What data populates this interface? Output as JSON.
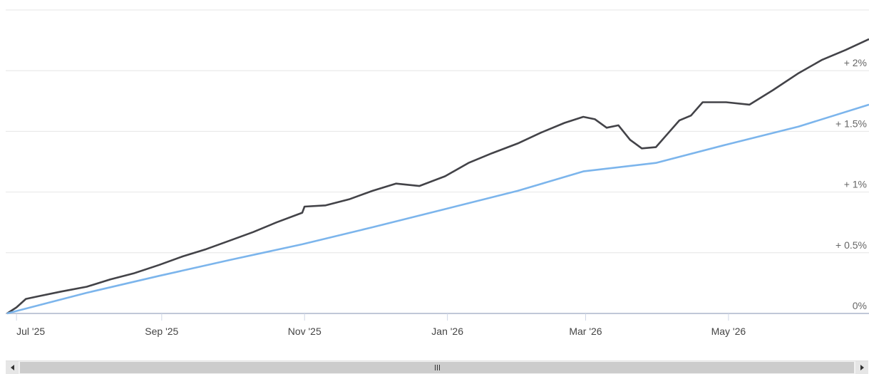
{
  "chart_data": {
    "type": "line",
    "x_start": "2025-06-27",
    "x_end": "2026-06-30",
    "x_tick_labels": [
      "Jul '25",
      "Sep '25",
      "Nov '25",
      "Jan '26",
      "Mar '26",
      "May '26"
    ],
    "y_tick_labels": [
      "0%",
      "+ 0.5%",
      "+ 1%",
      "+ 1.5%",
      "+ 2%"
    ],
    "ylim": [
      0,
      2.5
    ],
    "y_ticks": [
      0,
      0.5,
      1,
      1.5,
      2,
      2.5
    ],
    "y_axis_position": "right",
    "grid": true,
    "series": [
      {
        "color": "#434348",
        "points": [
          [
            "2025-06-27",
            0.0
          ],
          [
            "2025-07-01",
            0.05
          ],
          [
            "2025-07-05",
            0.12
          ],
          [
            "2025-07-10",
            0.14
          ],
          [
            "2025-07-20",
            0.18
          ],
          [
            "2025-07-31",
            0.22
          ],
          [
            "2025-08-10",
            0.28
          ],
          [
            "2025-08-20",
            0.33
          ],
          [
            "2025-08-31",
            0.4
          ],
          [
            "2025-09-10",
            0.47
          ],
          [
            "2025-09-20",
            0.53
          ],
          [
            "2025-09-30",
            0.6
          ],
          [
            "2025-10-10",
            0.67
          ],
          [
            "2025-10-20",
            0.75
          ],
          [
            "2025-10-31",
            0.83
          ],
          [
            "2025-11-01",
            0.88
          ],
          [
            "2025-11-10",
            0.89
          ],
          [
            "2025-11-20",
            0.94
          ],
          [
            "2025-11-30",
            1.01
          ],
          [
            "2025-12-10",
            1.07
          ],
          [
            "2025-12-20",
            1.05
          ],
          [
            "2025-12-31",
            1.13
          ],
          [
            "2026-01-10",
            1.24
          ],
          [
            "2026-01-20",
            1.32
          ],
          [
            "2026-01-31",
            1.4
          ],
          [
            "2026-02-10",
            1.49
          ],
          [
            "2026-02-20",
            1.57
          ],
          [
            "2026-02-28",
            1.62
          ],
          [
            "2026-03-05",
            1.6
          ],
          [
            "2026-03-10",
            1.53
          ],
          [
            "2026-03-15",
            1.55
          ],
          [
            "2026-03-20",
            1.43
          ],
          [
            "2026-03-25",
            1.36
          ],
          [
            "2026-03-31",
            1.37
          ],
          [
            "2026-04-05",
            1.48
          ],
          [
            "2026-04-10",
            1.59
          ],
          [
            "2026-04-15",
            1.63
          ],
          [
            "2026-04-20",
            1.74
          ],
          [
            "2026-04-30",
            1.74
          ],
          [
            "2026-05-10",
            1.72
          ],
          [
            "2026-05-20",
            1.84
          ],
          [
            "2026-05-31",
            1.98
          ],
          [
            "2026-06-10",
            2.09
          ],
          [
            "2026-06-20",
            2.17
          ],
          [
            "2026-06-30",
            2.26
          ]
        ]
      },
      {
        "color": "#7cb5ec",
        "points": [
          [
            "2025-06-27",
            0.0
          ],
          [
            "2025-07-31",
            0.17
          ],
          [
            "2025-08-31",
            0.31
          ],
          [
            "2025-09-30",
            0.44
          ],
          [
            "2025-10-31",
            0.57
          ],
          [
            "2025-11-30",
            0.71
          ],
          [
            "2025-12-31",
            0.86
          ],
          [
            "2026-01-31",
            1.01
          ],
          [
            "2026-02-28",
            1.17
          ],
          [
            "2026-03-31",
            1.24
          ],
          [
            "2026-04-30",
            1.39
          ],
          [
            "2026-05-31",
            1.54
          ],
          [
            "2026-06-30",
            1.72
          ]
        ]
      }
    ]
  },
  "scrollbar": {
    "left_arrow": "left-arrow-icon",
    "right_arrow": "right-arrow-icon",
    "grip": "grip-icon"
  }
}
